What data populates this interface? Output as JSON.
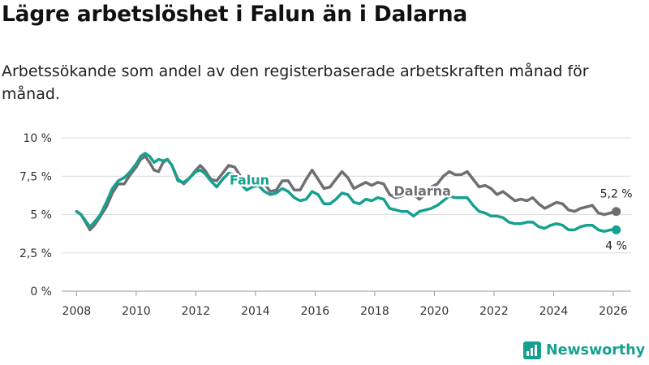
{
  "header": {
    "title": "Lägre arbetslöshet i Falun än i Dalarna",
    "subtitle": "Arbetssökande som andel av den registerbaserade arbetskraften månad för månad."
  },
  "brand": {
    "name": "Newsworthy",
    "color": "#16a08f"
  },
  "chart_data": {
    "type": "line",
    "xlim": [
      2007.5,
      2026.6
    ],
    "ylim": [
      0,
      10
    ],
    "yticks": [
      0,
      2.5,
      5,
      7.5,
      10
    ],
    "ytick_labels": [
      "0 %",
      "2,5 %",
      "5 %",
      "7,5 %",
      "10 %"
    ],
    "xticks": [
      2008,
      2010,
      2012,
      2014,
      2016,
      2018,
      2020,
      2022,
      2024,
      2026
    ],
    "xtick_labels": [
      "2008",
      "2010",
      "2012",
      "2014",
      "2016",
      "2018",
      "2020",
      "2022",
      "2024",
      "2026"
    ],
    "grid": true,
    "series": [
      {
        "name": "Dalarna",
        "color": "#6e6e73",
        "end_label": "5,2 %",
        "points": [
          [
            2008.0,
            5.2
          ],
          [
            2008.15,
            5.0
          ],
          [
            2008.3,
            4.5
          ],
          [
            2008.45,
            4.0
          ],
          [
            2008.6,
            4.3
          ],
          [
            2008.8,
            4.9
          ],
          [
            2009.0,
            5.5
          ],
          [
            2009.2,
            6.4
          ],
          [
            2009.4,
            7.0
          ],
          [
            2009.6,
            7.0
          ],
          [
            2009.8,
            7.6
          ],
          [
            2010.0,
            8.1
          ],
          [
            2010.15,
            8.6
          ],
          [
            2010.3,
            8.8
          ],
          [
            2010.45,
            8.4
          ],
          [
            2010.6,
            7.9
          ],
          [
            2010.75,
            7.8
          ],
          [
            2010.9,
            8.4
          ],
          [
            2011.05,
            8.6
          ],
          [
            2011.2,
            8.2
          ],
          [
            2011.4,
            7.3
          ],
          [
            2011.6,
            7.0
          ],
          [
            2011.8,
            7.4
          ],
          [
            2012.0,
            7.9
          ],
          [
            2012.15,
            8.2
          ],
          [
            2012.3,
            7.9
          ],
          [
            2012.5,
            7.3
          ],
          [
            2012.7,
            7.2
          ],
          [
            2012.9,
            7.7
          ],
          [
            2013.1,
            8.2
          ],
          [
            2013.3,
            8.1
          ],
          [
            2013.5,
            7.5
          ],
          [
            2013.7,
            7.0
          ],
          [
            2013.9,
            7.2
          ],
          [
            2014.1,
            7.4
          ],
          [
            2014.3,
            7.0
          ],
          [
            2014.5,
            6.5
          ],
          [
            2014.7,
            6.6
          ],
          [
            2014.9,
            7.2
          ],
          [
            2015.1,
            7.2
          ],
          [
            2015.3,
            6.6
          ],
          [
            2015.5,
            6.6
          ],
          [
            2015.7,
            7.3
          ],
          [
            2015.9,
            7.9
          ],
          [
            2016.1,
            7.3
          ],
          [
            2016.3,
            6.7
          ],
          [
            2016.5,
            6.8
          ],
          [
            2016.7,
            7.3
          ],
          [
            2016.9,
            7.8
          ],
          [
            2017.1,
            7.4
          ],
          [
            2017.3,
            6.7
          ],
          [
            2017.5,
            6.9
          ],
          [
            2017.7,
            7.1
          ],
          [
            2017.9,
            6.9
          ],
          [
            2018.1,
            7.1
          ],
          [
            2018.3,
            7.0
          ],
          [
            2018.5,
            6.3
          ],
          [
            2018.7,
            6.1
          ],
          [
            2018.9,
            6.2
          ],
          [
            2019.1,
            6.4
          ],
          [
            2019.3,
            6.3
          ],
          [
            2019.5,
            6.0
          ],
          [
            2019.7,
            6.3
          ],
          [
            2019.9,
            6.8
          ],
          [
            2020.1,
            7.0
          ],
          [
            2020.3,
            7.5
          ],
          [
            2020.5,
            7.8
          ],
          [
            2020.7,
            7.6
          ],
          [
            2020.9,
            7.6
          ],
          [
            2021.1,
            7.8
          ],
          [
            2021.3,
            7.3
          ],
          [
            2021.5,
            6.8
          ],
          [
            2021.7,
            6.9
          ],
          [
            2021.9,
            6.7
          ],
          [
            2022.1,
            6.3
          ],
          [
            2022.3,
            6.5
          ],
          [
            2022.5,
            6.2
          ],
          [
            2022.7,
            5.9
          ],
          [
            2022.9,
            6.0
          ],
          [
            2023.1,
            5.9
          ],
          [
            2023.3,
            6.1
          ],
          [
            2023.5,
            5.7
          ],
          [
            2023.7,
            5.4
          ],
          [
            2023.9,
            5.6
          ],
          [
            2024.1,
            5.8
          ],
          [
            2024.3,
            5.7
          ],
          [
            2024.5,
            5.3
          ],
          [
            2024.7,
            5.2
          ],
          [
            2024.9,
            5.4
          ],
          [
            2025.1,
            5.5
          ],
          [
            2025.3,
            5.6
          ],
          [
            2025.5,
            5.1
          ],
          [
            2025.7,
            5.0
          ],
          [
            2025.9,
            5.1
          ],
          [
            2026.1,
            5.2
          ]
        ]
      },
      {
        "name": "Falun",
        "color": "#16a08f",
        "end_label": "4 %",
        "points": [
          [
            2008.0,
            5.2
          ],
          [
            2008.15,
            5.0
          ],
          [
            2008.3,
            4.6
          ],
          [
            2008.45,
            4.2
          ],
          [
            2008.6,
            4.5
          ],
          [
            2008.8,
            5.0
          ],
          [
            2009.0,
            5.8
          ],
          [
            2009.2,
            6.7
          ],
          [
            2009.4,
            7.2
          ],
          [
            2009.6,
            7.4
          ],
          [
            2009.8,
            7.8
          ],
          [
            2010.0,
            8.3
          ],
          [
            2010.15,
            8.8
          ],
          [
            2010.3,
            9.0
          ],
          [
            2010.45,
            8.8
          ],
          [
            2010.6,
            8.4
          ],
          [
            2010.75,
            8.6
          ],
          [
            2010.9,
            8.5
          ],
          [
            2011.05,
            8.6
          ],
          [
            2011.2,
            8.2
          ],
          [
            2011.4,
            7.2
          ],
          [
            2011.6,
            7.1
          ],
          [
            2011.8,
            7.4
          ],
          [
            2012.0,
            7.8
          ],
          [
            2012.15,
            7.9
          ],
          [
            2012.3,
            7.7
          ],
          [
            2012.5,
            7.2
          ],
          [
            2012.7,
            6.8
          ],
          [
            2012.9,
            7.3
          ],
          [
            2013.1,
            7.7
          ],
          [
            2013.3,
            7.6
          ],
          [
            2013.5,
            7.0
          ],
          [
            2013.7,
            6.6
          ],
          [
            2013.9,
            6.8
          ],
          [
            2014.1,
            6.9
          ],
          [
            2014.3,
            6.5
          ],
          [
            2014.5,
            6.3
          ],
          [
            2014.7,
            6.4
          ],
          [
            2014.9,
            6.7
          ],
          [
            2015.1,
            6.5
          ],
          [
            2015.3,
            6.1
          ],
          [
            2015.5,
            5.9
          ],
          [
            2015.7,
            6.0
          ],
          [
            2015.9,
            6.5
          ],
          [
            2016.1,
            6.3
          ],
          [
            2016.3,
            5.7
          ],
          [
            2016.5,
            5.7
          ],
          [
            2016.7,
            6.0
          ],
          [
            2016.9,
            6.4
          ],
          [
            2017.1,
            6.3
          ],
          [
            2017.3,
            5.8
          ],
          [
            2017.5,
            5.7
          ],
          [
            2017.7,
            6.0
          ],
          [
            2017.9,
            5.9
          ],
          [
            2018.1,
            6.1
          ],
          [
            2018.3,
            6.0
          ],
          [
            2018.5,
            5.4
          ],
          [
            2018.7,
            5.3
          ],
          [
            2018.9,
            5.2
          ],
          [
            2019.1,
            5.2
          ],
          [
            2019.3,
            4.9
          ],
          [
            2019.5,
            5.2
          ],
          [
            2019.7,
            5.3
          ],
          [
            2019.9,
            5.4
          ],
          [
            2020.1,
            5.6
          ],
          [
            2020.3,
            5.9
          ],
          [
            2020.5,
            6.2
          ],
          [
            2020.7,
            6.1
          ],
          [
            2020.9,
            6.1
          ],
          [
            2021.1,
            6.1
          ],
          [
            2021.3,
            5.6
          ],
          [
            2021.5,
            5.2
          ],
          [
            2021.7,
            5.1
          ],
          [
            2021.9,
            4.9
          ],
          [
            2022.1,
            4.9
          ],
          [
            2022.3,
            4.8
          ],
          [
            2022.5,
            4.5
          ],
          [
            2022.7,
            4.4
          ],
          [
            2022.9,
            4.4
          ],
          [
            2023.1,
            4.5
          ],
          [
            2023.3,
            4.5
          ],
          [
            2023.5,
            4.2
          ],
          [
            2023.7,
            4.1
          ],
          [
            2023.9,
            4.3
          ],
          [
            2024.1,
            4.4
          ],
          [
            2024.3,
            4.3
          ],
          [
            2024.5,
            4.0
          ],
          [
            2024.7,
            4.0
          ],
          [
            2024.9,
            4.2
          ],
          [
            2025.1,
            4.3
          ],
          [
            2025.3,
            4.3
          ],
          [
            2025.5,
            4.0
          ],
          [
            2025.7,
            3.9
          ],
          [
            2025.9,
            4.0
          ],
          [
            2026.1,
            4.0
          ]
        ]
      }
    ]
  }
}
